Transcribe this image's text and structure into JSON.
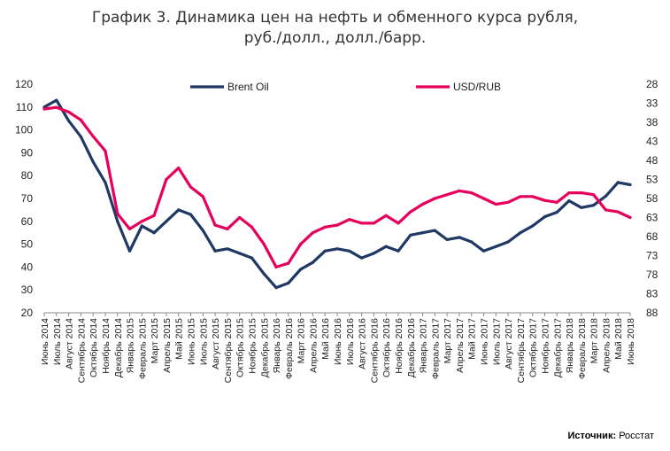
{
  "title_line1": "График 3. Динамика цен на нефть и обменного курса рубля,",
  "title_line2": "руб./долл., долл./барр.",
  "source_label": "Источник:",
  "source_value": "Росстат",
  "chart_data": {
    "type": "line",
    "legend_position": "top",
    "grid": false,
    "x_tick_labels": [
      "Июнь 2014",
      "Июль 2014",
      "Август 2014",
      "Сентябрь 2014",
      "Октябрь 2014",
      "Ноябрь 2014",
      "Декабрь 2014",
      "Январь 2015",
      "Февраль 2015",
      "Март 2015",
      "Апрель 2015",
      "Май 2015",
      "Июнь 2015",
      "Июль 2015",
      "Август 2015",
      "Сентябрь 2015",
      "Октябрь 2015",
      "Ноябрь 2015",
      "Декабрь 2015",
      "Январь 2016",
      "Февраль 2016",
      "Март 2016",
      "Апрель 2016",
      "Май 2016",
      "Июнь 2016",
      "Июль 2016",
      "Август 2016",
      "Сентябрь 2016",
      "Октябрь 2016",
      "Ноябрь 2016",
      "Декабрь 2016",
      "Январь 2017",
      "Февраль 2017",
      "Март 2017",
      "Апрель 2017",
      "Май 2017",
      "Июнь 2017",
      "Июль 2017",
      "Август 2017",
      "Сентябрь 2017",
      "Октябрь 2017",
      "Ноябрь 2017",
      "Декабрь 2017",
      "Январь 2018",
      "Февраль 2018",
      "Март 2018",
      "Апрель 2018",
      "Май 2018",
      "Июнь 2018"
    ],
    "y_left": {
      "min": 20,
      "max": 120,
      "ticks": [
        20,
        30,
        40,
        50,
        60,
        70,
        80,
        90,
        100,
        110,
        120
      ]
    },
    "y_right": {
      "min": 28,
      "max": 88,
      "inverted": true,
      "ticks": [
        28,
        33,
        38,
        43,
        48,
        53,
        58,
        63,
        68,
        73,
        78,
        83,
        88
      ]
    },
    "series": [
      {
        "name": "Brent Oil",
        "axis": "left",
        "color": "#1f3864",
        "values": [
          110,
          113,
          104,
          97,
          86,
          77,
          60,
          47,
          58,
          55,
          60,
          65,
          63,
          56,
          47,
          48,
          46,
          44,
          37,
          31,
          33,
          39,
          42,
          47,
          48,
          47,
          44,
          46,
          49,
          47,
          54,
          55,
          56,
          52,
          53,
          51,
          47,
          49,
          51,
          55,
          58,
          62,
          64,
          69,
          66,
          67,
          71,
          77,
          76
        ]
      },
      {
        "name": "USD/RUB",
        "axis": "right",
        "color": "#e6005c",
        "values": [
          34.5,
          34.1,
          35.3,
          37.4,
          41.7,
          45.5,
          62.0,
          66.0,
          64.0,
          62.5,
          53.0,
          50.0,
          55.0,
          57.5,
          65.0,
          66.0,
          63.0,
          65.5,
          70.0,
          76.0,
          75.0,
          70.0,
          67.0,
          65.5,
          65.0,
          63.5,
          64.5,
          64.5,
          62.5,
          64.5,
          61.5,
          59.5,
          58.0,
          57.0,
          56.0,
          56.5,
          58.0,
          59.5,
          59.0,
          57.5,
          57.5,
          58.5,
          59.0,
          56.5,
          56.5,
          57.0,
          61.0,
          61.5,
          63.0
        ]
      }
    ]
  }
}
